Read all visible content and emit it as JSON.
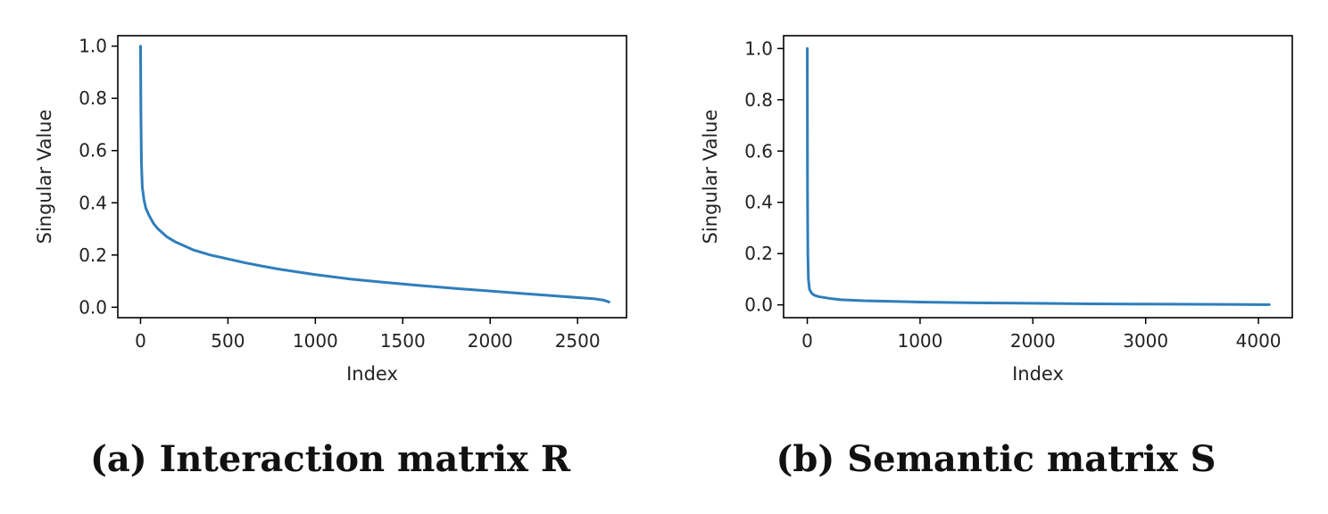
{
  "chart_data": [
    {
      "type": "line",
      "caption": "(a) Interaction matrix R",
      "xlabel": "Index",
      "ylabel": "Singular Value",
      "xlim": [
        -130,
        2780
      ],
      "ylim": [
        -0.04,
        1.04
      ],
      "xticks": [
        0,
        500,
        1000,
        1500,
        2000,
        2500
      ],
      "yticks": [
        0.0,
        0.2,
        0.4,
        0.6,
        0.8,
        1.0
      ],
      "xtick_labels": [
        "0",
        "500",
        "1000",
        "1500",
        "2000",
        "2500"
      ],
      "ytick_labels": [
        "0.0",
        "0.2",
        "0.4",
        "0.6",
        "0.8",
        "1.0"
      ],
      "grid": false,
      "color": "#2f7ebc",
      "series": [
        {
          "x": [
            0,
            2,
            5,
            10,
            20,
            30,
            50,
            75,
            100,
            150,
            200,
            300,
            400,
            500,
            600,
            700,
            800,
            1000,
            1200,
            1400,
            1600,
            1800,
            2000,
            2200,
            2400,
            2600,
            2650,
            2680
          ],
          "values": [
            1.0,
            0.75,
            0.56,
            0.46,
            0.41,
            0.38,
            0.35,
            0.32,
            0.3,
            0.27,
            0.25,
            0.22,
            0.2,
            0.185,
            0.17,
            0.157,
            0.145,
            0.125,
            0.108,
            0.095,
            0.083,
            0.072,
            0.062,
            0.052,
            0.042,
            0.032,
            0.027,
            0.02
          ]
        }
      ]
    },
    {
      "type": "line",
      "caption": "(b) Semantic matrix S",
      "xlabel": "Index",
      "ylabel": "Singular Value",
      "xlim": [
        -210,
        4300
      ],
      "ylim": [
        -0.05,
        1.05
      ],
      "xticks": [
        0,
        1000,
        2000,
        3000,
        4000
      ],
      "yticks": [
        0.0,
        0.2,
        0.4,
        0.6,
        0.8,
        1.0
      ],
      "xtick_labels": [
        "0",
        "1000",
        "2000",
        "3000",
        "4000"
      ],
      "ytick_labels": [
        "0.0",
        "0.2",
        "0.4",
        "0.6",
        "0.8",
        "1.0"
      ],
      "grid": false,
      "color": "#2f7ebc",
      "series": [
        {
          "x": [
            0,
            2,
            5,
            10,
            20,
            40,
            60,
            100,
            200,
            300,
            500,
            1000,
            1500,
            2000,
            2500,
            3000,
            3500,
            4000,
            4096
          ],
          "values": [
            1.0,
            0.45,
            0.2,
            0.1,
            0.06,
            0.045,
            0.038,
            0.032,
            0.025,
            0.02,
            0.016,
            0.011,
            0.008,
            0.006,
            0.004,
            0.003,
            0.002,
            0.001,
            0.001
          ]
        }
      ]
    }
  ]
}
